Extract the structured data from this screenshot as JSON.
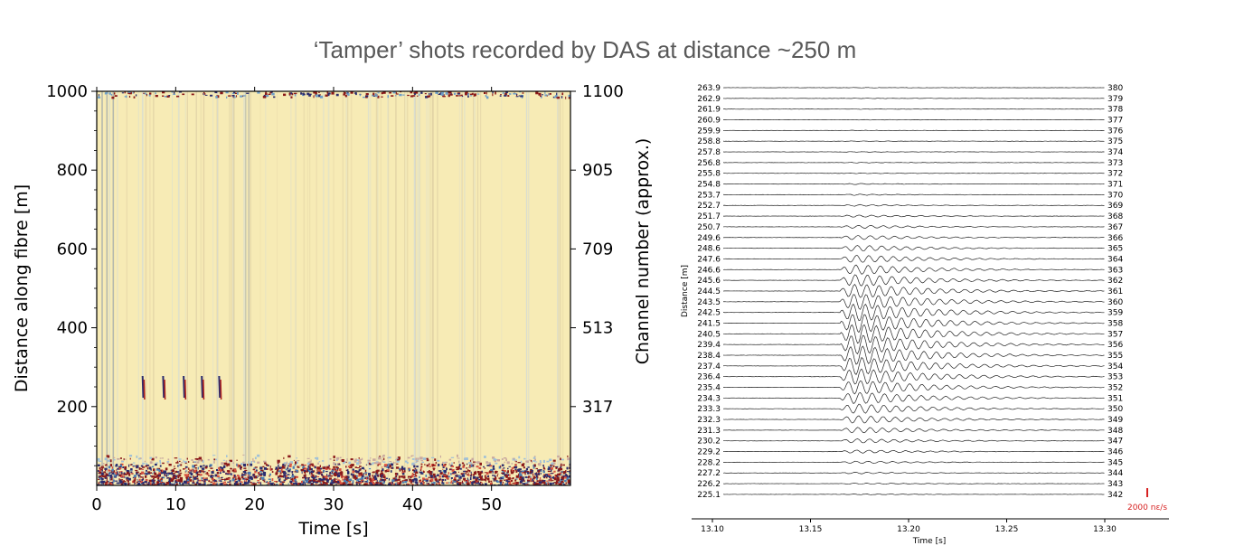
{
  "figure": {
    "title": "‘Tamper’ shots recorded by DAS at distance ~250 m"
  },
  "chart_data": [
    {
      "type": "heatmap",
      "xlabel": "Time [s]",
      "ylabel": "Distance along fibre [m]",
      "ylabel_right": "Channel number (approx.)",
      "xlim": [
        0,
        60
      ],
      "ylim": [
        0,
        1000
      ],
      "x_ticks": [
        "0",
        "10",
        "20",
        "30",
        "40",
        "50"
      ],
      "x_tick_values": [
        0,
        10,
        20,
        30,
        40,
        50
      ],
      "y_ticks": [
        "1000",
        "800",
        "600",
        "400",
        "200"
      ],
      "y_tick_values": [
        1000,
        800,
        600,
        400,
        200
      ],
      "y_right_ticks": [
        "1100",
        "905",
        "709",
        "513",
        "317"
      ],
      "colormap": "diverging red-yellow-blue",
      "shot_times_s": [
        5.8,
        8.4,
        11.0,
        13.3,
        15.5
      ],
      "shot_distance_m": 250,
      "colors": {
        "background": "#f7ebb5",
        "noise_red": "#8b1a1a",
        "noise_blue": "#2b2c6e"
      }
    },
    {
      "type": "line",
      "xlabel": "Time [s]",
      "ylabel": "Distance [m]",
      "xlim": [
        13.09,
        13.33
      ],
      "x_ticks": [
        "13.10",
        "13.15",
        "13.20",
        "13.25",
        "13.30"
      ],
      "x_tick_values": [
        13.1,
        13.15,
        13.2,
        13.25,
        13.3
      ],
      "left_labels": [
        "263.9",
        "262.9",
        "261.9",
        "260.9",
        "259.9",
        "258.8",
        "257.8",
        "256.8",
        "255.8",
        "254.8",
        "253.7",
        "252.7",
        "251.7",
        "250.7",
        "249.6",
        "248.6",
        "247.6",
        "246.6",
        "245.6",
        "244.5",
        "243.5",
        "242.5",
        "241.5",
        "240.5",
        "239.4",
        "238.4",
        "237.4",
        "236.4",
        "235.4",
        "234.3",
        "233.3",
        "232.3",
        "231.3",
        "230.2",
        "229.2",
        "228.2",
        "227.2",
        "226.2",
        "225.1"
      ],
      "right_labels": [
        "380",
        "379",
        "378",
        "377",
        "376",
        "375",
        "374",
        "373",
        "372",
        "371",
        "370",
        "369",
        "368",
        "367",
        "366",
        "365",
        "364",
        "363",
        "362",
        "361",
        "360",
        "359",
        "358",
        "357",
        "356",
        "355",
        "354",
        "353",
        "352",
        "351",
        "350",
        "349",
        "348",
        "347",
        "346",
        "345",
        "344",
        "343",
        "342"
      ],
      "scale_bar": {
        "label": "2000 nε/s",
        "color": "#d62020"
      }
    }
  ]
}
